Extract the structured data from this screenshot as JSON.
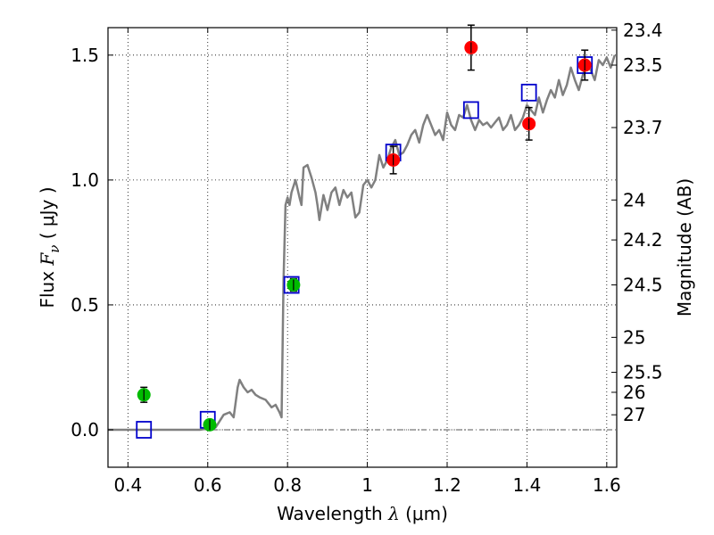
{
  "chart_data": {
    "type": "scatter",
    "xlabel": {
      "prefix": "Wavelength  ",
      "symbol": "λ",
      "unit": " (μm)"
    },
    "ylabel": {
      "prefix": "Flux  ",
      "symbol": "F",
      "subscript": "ν",
      "unit": " (  μJy )"
    },
    "y2label": "Magnitude (AB)",
    "xlim": [
      0.35,
      1.625
    ],
    "ylim": [
      -0.15,
      1.61
    ],
    "grid": true,
    "x_ticks": [
      {
        "value": 0.4,
        "label": "0.4"
      },
      {
        "value": 0.6,
        "label": "0.6"
      },
      {
        "value": 0.8,
        "label": "0.8"
      },
      {
        "value": 1.0,
        "label": "1"
      },
      {
        "value": 1.2,
        "label": "1.2"
      },
      {
        "value": 1.4,
        "label": "1.4"
      },
      {
        "value": 1.6,
        "label": "1.6"
      }
    ],
    "y_ticks": [
      {
        "value": 0.0,
        "label": "0.0"
      },
      {
        "value": 0.5,
        "label": "0.5"
      },
      {
        "value": 1.0,
        "label": "1.0"
      },
      {
        "value": 1.5,
        "label": "1.5"
      }
    ],
    "y2_ticks": [
      {
        "flux": 1.6,
        "label": "23.4"
      },
      {
        "flux": 1.46,
        "label": "23.5"
      },
      {
        "flux": 1.21,
        "label": "23.7"
      },
      {
        "flux": 0.92,
        "label": "24"
      },
      {
        "flux": 0.76,
        "label": "24.2"
      },
      {
        "flux": 0.58,
        "label": "24.5"
      },
      {
        "flux": 0.37,
        "label": "25"
      },
      {
        "flux": 0.23,
        "label": "25.5"
      },
      {
        "flux": 0.15,
        "label": "26"
      },
      {
        "flux": 0.06,
        "label": "27"
      }
    ],
    "zero_line": {
      "value": 0.0,
      "color": "#555555"
    },
    "sed_model": {
      "color": "#808080",
      "x": [
        0.35,
        0.58,
        0.62,
        0.64,
        0.655,
        0.665,
        0.675,
        0.68,
        0.69,
        0.7,
        0.71,
        0.72,
        0.73,
        0.745,
        0.76,
        0.77,
        0.78,
        0.785,
        0.79,
        0.795,
        0.8,
        0.805,
        0.81,
        0.82,
        0.83,
        0.835,
        0.84,
        0.85,
        0.86,
        0.87,
        0.875,
        0.88,
        0.89,
        0.9,
        0.91,
        0.92,
        0.93,
        0.94,
        0.95,
        0.96,
        0.97,
        0.98,
        0.99,
        1.0,
        1.01,
        1.02,
        1.03,
        1.04,
        1.05,
        1.06,
        1.07,
        1.08,
        1.09,
        1.1,
        1.11,
        1.12,
        1.13,
        1.14,
        1.15,
        1.16,
        1.17,
        1.18,
        1.19,
        1.2,
        1.21,
        1.22,
        1.23,
        1.24,
        1.25,
        1.26,
        1.27,
        1.28,
        1.29,
        1.3,
        1.31,
        1.32,
        1.33,
        1.34,
        1.35,
        1.36,
        1.37,
        1.38,
        1.39,
        1.4,
        1.41,
        1.42,
        1.43,
        1.44,
        1.45,
        1.46,
        1.47,
        1.48,
        1.49,
        1.5,
        1.51,
        1.52,
        1.53,
        1.54,
        1.55,
        1.56,
        1.57,
        1.58,
        1.59,
        1.6,
        1.61,
        1.62
      ],
      "y": [
        0.0,
        0.0,
        0.01,
        0.06,
        0.07,
        0.05,
        0.17,
        0.2,
        0.17,
        0.15,
        0.16,
        0.14,
        0.13,
        0.12,
        0.09,
        0.1,
        0.07,
        0.05,
        0.6,
        0.9,
        0.93,
        0.9,
        0.95,
        1.0,
        0.93,
        0.9,
        1.05,
        1.06,
        1.01,
        0.95,
        0.9,
        0.84,
        0.94,
        0.88,
        0.95,
        0.97,
        0.9,
        0.96,
        0.93,
        0.95,
        0.85,
        0.87,
        0.98,
        1.0,
        0.97,
        1.0,
        1.1,
        1.05,
        1.08,
        1.13,
        1.16,
        1.1,
        1.11,
        1.14,
        1.18,
        1.2,
        1.15,
        1.22,
        1.26,
        1.22,
        1.18,
        1.2,
        1.16,
        1.27,
        1.22,
        1.2,
        1.26,
        1.25,
        1.3,
        1.24,
        1.2,
        1.24,
        1.22,
        1.23,
        1.21,
        1.23,
        1.25,
        1.2,
        1.22,
        1.26,
        1.2,
        1.22,
        1.25,
        1.3,
        1.28,
        1.26,
        1.33,
        1.27,
        1.32,
        1.36,
        1.33,
        1.4,
        1.34,
        1.38,
        1.45,
        1.4,
        1.36,
        1.42,
        1.47,
        1.44,
        1.4,
        1.48,
        1.46,
        1.49,
        1.45,
        1.5
      ]
    },
    "series": [
      {
        "marker": "square-open",
        "color": "#0000cc",
        "x": [
          0.44,
          0.6,
          0.81,
          1.065,
          1.26,
          1.405,
          1.545
        ],
        "y": [
          0.0,
          0.04,
          0.58,
          1.11,
          1.28,
          1.35,
          1.46
        ]
      },
      {
        "marker": "circle",
        "color": "#00bb00",
        "x": [
          0.44,
          0.605,
          0.815
        ],
        "y": [
          0.14,
          0.02,
          0.58
        ],
        "err": [
          0.03,
          0.02,
          0.025
        ]
      },
      {
        "marker": "circle",
        "color": "#ff0000",
        "x": [
          1.065,
          1.26,
          1.405,
          1.545
        ],
        "y": [
          1.08,
          1.53,
          1.225,
          1.46
        ],
        "err": [
          0.055,
          0.09,
          0.065,
          0.06
        ]
      }
    ]
  }
}
